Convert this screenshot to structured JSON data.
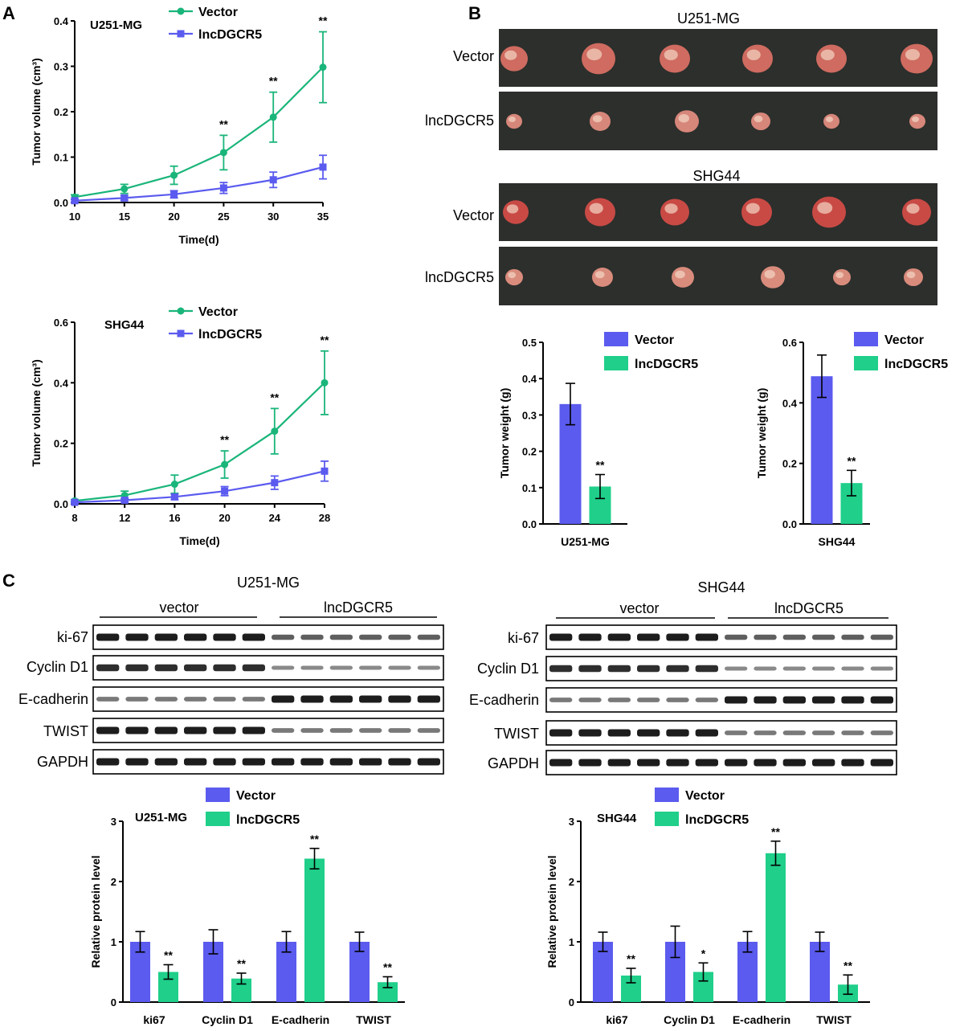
{
  "panels": {
    "a": "A",
    "b": "B",
    "c": "C"
  },
  "colors": {
    "vector_line": "#1ab57a",
    "lnc_line": "#5b5bef",
    "vector_bar": "#5b5bef",
    "lnc_bar": "#1fcf8a",
    "photo_bg": "#2c2f2c",
    "blot_bg": "#ffffff"
  },
  "photos": {
    "u251_title": "U251-MG",
    "shg44_title": "SHG44",
    "row_vector": "Vector",
    "row_lnc": "lncDGCR5"
  },
  "blots": {
    "u251_title": "U251-MG",
    "shg44_title": "SHG44",
    "group_vector": "vector",
    "group_lnc": "lncDGCR5",
    "rows": [
      "ki-67",
      "Cyclin D1",
      "E-cadherin",
      "TWIST",
      "GAPDH"
    ]
  },
  "chart_data": [
    {
      "id": "a1",
      "type": "line",
      "title": "U251-MG",
      "xlabel": "Time(d)",
      "ylabel": "Tumor volume (cm³)",
      "x": [
        10,
        15,
        20,
        25,
        30,
        35
      ],
      "xlim": [
        10,
        35
      ],
      "ylim": [
        0,
        0.4
      ],
      "yticks": [
        0.0,
        0.1,
        0.2,
        0.3,
        0.4
      ],
      "ytick_labels": [
        "0.0",
        "0.1",
        "0.2",
        "0.3",
        "0.4"
      ],
      "series": [
        {
          "name": "Vector",
          "marker": "circle",
          "values": [
            0.012,
            0.03,
            0.06,
            0.11,
            0.188,
            0.298
          ],
          "err": [
            0.005,
            0.01,
            0.02,
            0.038,
            0.055,
            0.078
          ]
        },
        {
          "name": "lncDGCR5",
          "marker": "square",
          "values": [
            0.004,
            0.01,
            0.018,
            0.032,
            0.05,
            0.078
          ],
          "err": [
            0.003,
            0.005,
            0.008,
            0.012,
            0.017,
            0.026
          ]
        }
      ],
      "annotations": [
        {
          "x": 25,
          "text": "**"
        },
        {
          "x": 30,
          "text": "**"
        },
        {
          "x": 35,
          "text": "**"
        }
      ]
    },
    {
      "id": "a2",
      "type": "line",
      "title": "SHG44",
      "xlabel": "Time(d)",
      "ylabel": "Tumor volume (cm³)",
      "x": [
        8,
        12,
        16,
        20,
        24,
        28
      ],
      "xlim": [
        8,
        28
      ],
      "ylim": [
        0,
        0.6
      ],
      "yticks": [
        0.0,
        0.2,
        0.4,
        0.6
      ],
      "ytick_labels": [
        "0.0",
        "0.2",
        "0.4",
        "0.6"
      ],
      "series": [
        {
          "name": "Vector",
          "marker": "circle",
          "values": [
            0.01,
            0.028,
            0.065,
            0.13,
            0.24,
            0.4
          ],
          "err": [
            0.004,
            0.014,
            0.03,
            0.045,
            0.075,
            0.105
          ]
        },
        {
          "name": "lncDGCR5",
          "marker": "square",
          "values": [
            0.005,
            0.012,
            0.023,
            0.042,
            0.07,
            0.108
          ],
          "err": [
            0.003,
            0.006,
            0.009,
            0.015,
            0.022,
            0.033
          ]
        }
      ],
      "annotations": [
        {
          "x": 20,
          "text": "**"
        },
        {
          "x": 24,
          "text": "**"
        },
        {
          "x": 28,
          "text": "**"
        }
      ]
    },
    {
      "id": "b1",
      "type": "bar",
      "categories": [
        "U251-MG"
      ],
      "ylabel": "Tumor weight (g)",
      "ylim": [
        0,
        0.5
      ],
      "yticks": [
        0.0,
        0.1,
        0.2,
        0.3,
        0.4,
        0.5
      ],
      "ytick_labels": [
        "0.0",
        "0.1",
        "0.2",
        "0.3",
        "0.4",
        "0.5"
      ],
      "series": [
        {
          "name": "Vector",
          "values": [
            0.33
          ],
          "err": [
            0.057
          ]
        },
        {
          "name": "lncDGCR5",
          "values": [
            0.103
          ],
          "err": [
            0.033
          ]
        }
      ],
      "annotations": [
        {
          "series": 1,
          "index": 0,
          "text": "**"
        }
      ]
    },
    {
      "id": "b2",
      "type": "bar",
      "categories": [
        "SHG44"
      ],
      "ylabel": "Tumor weight (g)",
      "ylim": [
        0,
        0.6
      ],
      "yticks": [
        0.0,
        0.2,
        0.4,
        0.6
      ],
      "ytick_labels": [
        "0.0",
        "0.2",
        "0.4",
        "0.6"
      ],
      "series": [
        {
          "name": "Vector",
          "values": [
            0.488
          ],
          "err": [
            0.07
          ]
        },
        {
          "name": "lncDGCR5",
          "values": [
            0.135
          ],
          "err": [
            0.042
          ]
        }
      ],
      "annotations": [
        {
          "series": 1,
          "index": 0,
          "text": "**"
        }
      ]
    },
    {
      "id": "c1",
      "type": "bar",
      "title": "U251-MG",
      "categories": [
        "ki67",
        "Cyclin D1",
        "E-cadherin",
        "TWIST"
      ],
      "ylabel": "Relative protein level",
      "ylim": [
        0,
        3
      ],
      "yticks": [
        0,
        1,
        2,
        3
      ],
      "ytick_labels": [
        "0",
        "1",
        "2",
        "3"
      ],
      "series": [
        {
          "name": "Vector",
          "values": [
            1.0,
            1.0,
            1.0,
            1.0
          ],
          "err": [
            0.17,
            0.2,
            0.17,
            0.16
          ]
        },
        {
          "name": "lncDGCR5",
          "values": [
            0.5,
            0.39,
            2.38,
            0.33
          ],
          "err": [
            0.12,
            0.09,
            0.17,
            0.09
          ]
        }
      ],
      "annotations": [
        {
          "series": 1,
          "index": 0,
          "text": "**"
        },
        {
          "series": 1,
          "index": 1,
          "text": "**"
        },
        {
          "series": 1,
          "index": 2,
          "text": "**"
        },
        {
          "series": 1,
          "index": 3,
          "text": "**"
        }
      ]
    },
    {
      "id": "c2",
      "type": "bar",
      "title": "SHG44",
      "categories": [
        "ki67",
        "Cyclin D1",
        "E-cadherin",
        "TWIST"
      ],
      "ylabel": "Relative protein level",
      "ylim": [
        0,
        3
      ],
      "yticks": [
        0,
        1,
        2,
        3
      ],
      "ytick_labels": [
        "0",
        "1",
        "2",
        "3"
      ],
      "series": [
        {
          "name": "Vector",
          "values": [
            1.0,
            1.0,
            1.0,
            1.0
          ],
          "err": [
            0.16,
            0.26,
            0.17,
            0.16
          ]
        },
        {
          "name": "lncDGCR5",
          "values": [
            0.44,
            0.5,
            2.47,
            0.29
          ],
          "err": [
            0.12,
            0.15,
            0.2,
            0.16
          ]
        }
      ],
      "annotations": [
        {
          "series": 1,
          "index": 0,
          "text": "**"
        },
        {
          "series": 1,
          "index": 1,
          "text": "*"
        },
        {
          "series": 1,
          "index": 2,
          "text": "**"
        },
        {
          "series": 1,
          "index": 3,
          "text": "**"
        }
      ]
    }
  ]
}
